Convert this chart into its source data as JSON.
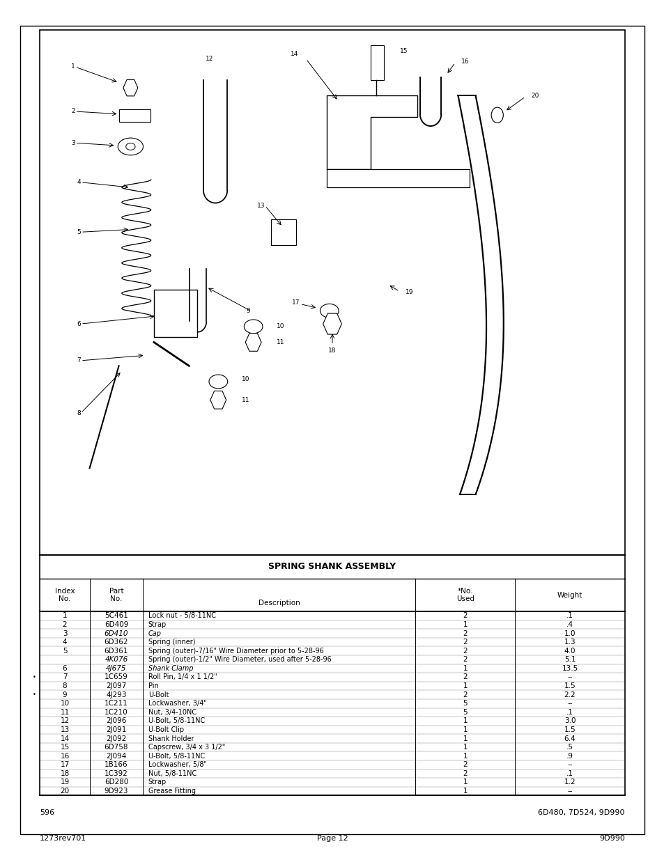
{
  "page_bg": "#ffffff",
  "table_title": "SPRING SHANK ASSEMBLY",
  "table_header": [
    "Index\nNo.",
    "Part\nNo.",
    "Description",
    "*No.\nUsed",
    "Weight"
  ],
  "rows": [
    [
      "1",
      "5C461",
      "Lock nut - 5/8-11NC",
      "2",
      ".1"
    ],
    [
      "2",
      "6D409",
      "Strap",
      "1",
      ".4"
    ],
    [
      "3",
      "6D410",
      "Cap",
      "2",
      "1.0"
    ],
    [
      "4",
      "6D362",
      "Spring (inner)",
      "2",
      "1.3"
    ],
    [
      "5",
      "6D361",
      "Spring (outer)-7/16\" Wire Diameter prior to 5-28-96",
      "2",
      "4.0"
    ],
    [
      "",
      "4K076",
      "Spring (outer)-1/2\" Wire Diameter, used after 5-28-96",
      "2",
      "5.1"
    ],
    [
      "6",
      "4J675",
      "Shank Clamp",
      "1",
      "13.5"
    ],
    [
      "7",
      "1C659",
      "Roll Pin, 1/4 x 1 1/2\"",
      "2",
      "--"
    ],
    [
      "8",
      "2J097",
      "Pin",
      "1",
      "1.5"
    ],
    [
      "9",
      "4J293",
      "U-Bolt",
      "2",
      "2.2"
    ],
    [
      "10",
      "1C211",
      "Lockwasher, 3/4\"",
      "5",
      "--"
    ],
    [
      "11",
      "1C210",
      "Nut, 3/4-10NC",
      "5",
      ".1"
    ],
    [
      "12",
      "2J096",
      "U-Bolt, 5/8-11NC",
      "1",
      "3.0"
    ],
    [
      "13",
      "2J091",
      "U-Bolt Clip",
      "1",
      "1.5"
    ],
    [
      "14",
      "2J092",
      "Shank Holder",
      "1",
      "6.4"
    ],
    [
      "15",
      "6D758",
      "Capscrew, 3/4 x 3 1/2\"",
      "1",
      ".5"
    ],
    [
      "16",
      "2J094",
      "U-Bolt, 5/8-11NC",
      "1",
      ".9"
    ],
    [
      "17",
      "1B166",
      "Lockwasher, 5/8\"",
      "2",
      "--"
    ],
    [
      "18",
      "1C392",
      "Nut, 5/8-11NC",
      "2",
      ".1"
    ],
    [
      "19",
      "6D280",
      "Strap",
      "1",
      "1.2"
    ],
    [
      "20",
      "9D923",
      "Grease Fitting",
      "1",
      "--"
    ]
  ],
  "footnote_left": "596",
  "footnote_right": "6D480, 7D524, 9D990",
  "footer_left": "1273rev701",
  "footer_center": "Page 12",
  "footer_right": "9D990"
}
